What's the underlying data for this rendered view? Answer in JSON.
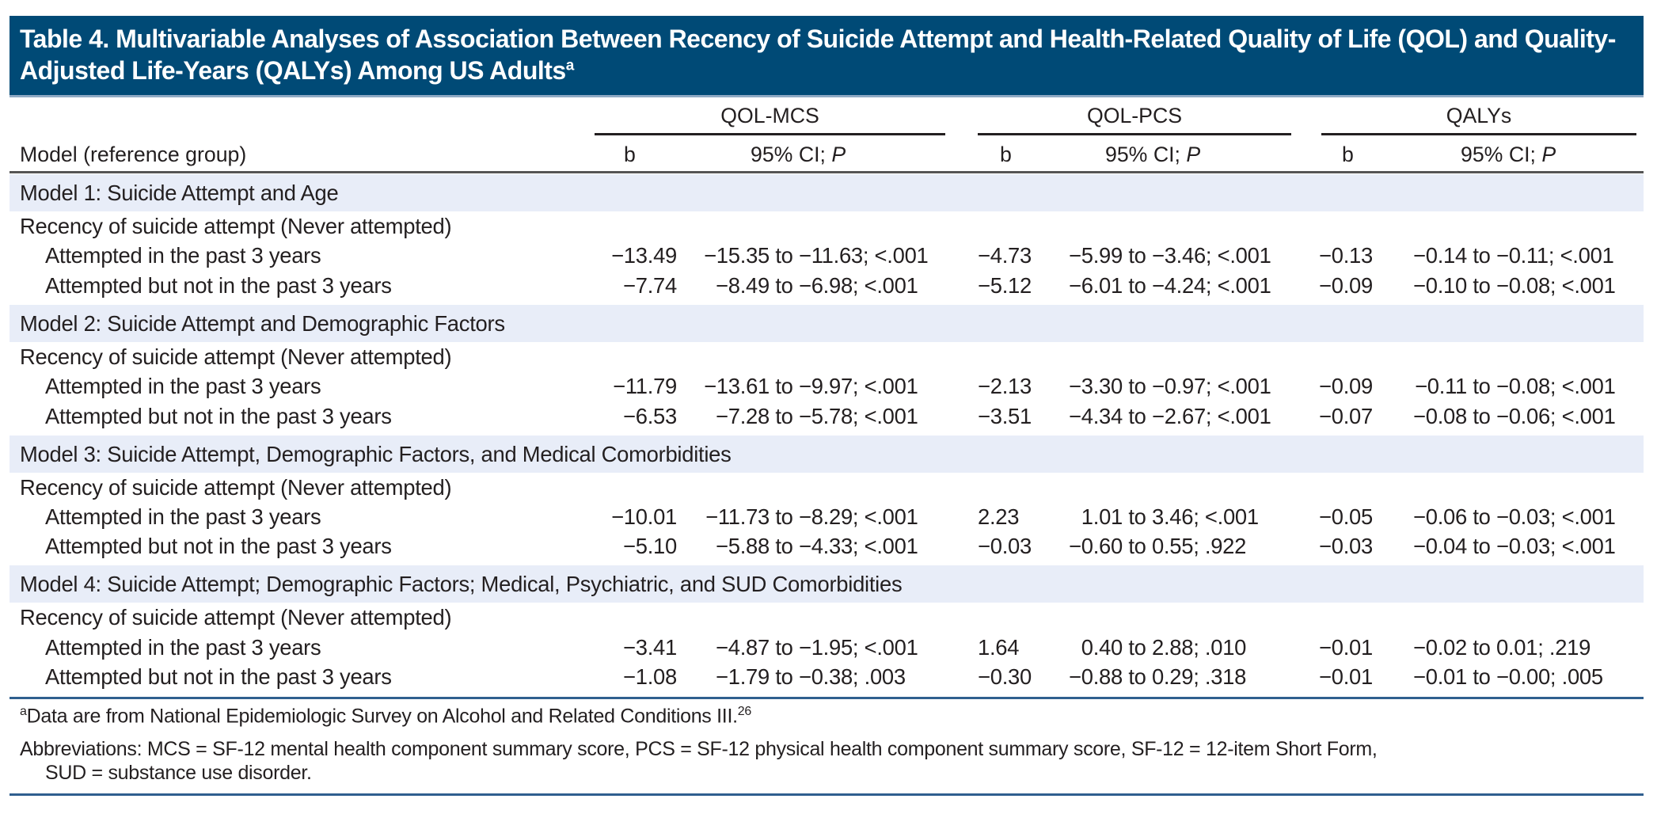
{
  "title": {
    "text": "Table 4. Multivariable Analyses of Association Between Recency of Suicide Attempt and Health-Related Quality of Life (QOL) and Quality-Adjusted Life-Years (QALYs) Among US Adults",
    "footnote_marker": "a"
  },
  "colors": {
    "title_bg": "#004a76",
    "band_bg": "#e8edf8",
    "rule_blue": "#2f5f8f"
  },
  "header": {
    "row_header": "Model (reference group)",
    "groups": [
      {
        "label": "QOL-MCS",
        "b": "b",
        "ci": "95% CI; ",
        "p": "P"
      },
      {
        "label": "QOL-PCS",
        "b": "b",
        "ci": "95% CI; ",
        "p": "P"
      },
      {
        "label": "QALYs",
        "b": "b",
        "ci": "95% CI; ",
        "p": "P"
      }
    ]
  },
  "models": [
    {
      "label": "Model 1: Suicide Attempt and Age",
      "reference": "Recency of suicide attempt (Never attempted)",
      "rows": [
        {
          "label": "Attempted in the past 3 years",
          "mcs_b": "−13.49",
          "mcs_ci": "−15.35 to −11.63; <.001",
          "pcs_b": "−4.73",
          "pcs_ci": "−5.99 to −3.46; <.001",
          "qaly_b": "−0.13",
          "qaly_ci": "−0.14 to −0.11; <.001"
        },
        {
          "label": "Attempted but not in the past 3 years",
          "mcs_b": "−7.74",
          "mcs_ci": "−8.49 to −6.98; <.001",
          "pcs_b": "−5.12",
          "pcs_ci": "−6.01 to −4.24; <.001",
          "qaly_b": "−0.09",
          "qaly_ci": "−0.10 to −0.08; <.001"
        }
      ]
    },
    {
      "label": "Model 2: Suicide Attempt and Demographic Factors",
      "reference": "Recency of suicide attempt (Never attempted)",
      "rows": [
        {
          "label": "Attempted in the past 3 years",
          "mcs_b": "−11.79",
          "mcs_ci": "−13.61 to −9.97; <.001",
          "pcs_b": "−2.13",
          "pcs_ci": "−3.30 to −0.97; <.001",
          "qaly_b": "−0.09",
          "qaly_ci": "−0.11 to −0.08; <.001"
        },
        {
          "label": "Attempted but not in the past 3 years",
          "mcs_b": "−6.53",
          "mcs_ci": "−7.28 to −5.78; <.001",
          "pcs_b": "−3.51",
          "pcs_ci": "−4.34 to −2.67; <.001",
          "qaly_b": "−0.07",
          "qaly_ci": "−0.08 to −0.06; <.001"
        }
      ]
    },
    {
      "label": "Model 3: Suicide Attempt, Demographic Factors, and Medical Comorbidities",
      "reference": "Recency of suicide attempt (Never attempted)",
      "rows": [
        {
          "label": "Attempted in the past 3 years",
          "mcs_b": "−10.01",
          "mcs_ci": "−11.73 to −8.29; <.001",
          "pcs_b": "2.23",
          "pcs_ci": "1.01 to 3.46; <.001",
          "qaly_b": "−0.05",
          "qaly_ci": "−0.06 to −0.03; <.001"
        },
        {
          "label": "Attempted but not in the past 3 years",
          "mcs_b": "−5.10",
          "mcs_ci": "−5.88 to −4.33; <.001",
          "pcs_b": "−0.03",
          "pcs_ci": "−0.60 to 0.55; .922",
          "qaly_b": "−0.03",
          "qaly_ci": "−0.04 to −0.03; <.001"
        }
      ]
    },
    {
      "label": "Model 4: Suicide Attempt; Demographic Factors; Medical, Psychiatric, and SUD Comorbidities",
      "reference": "Recency of suicide attempt (Never attempted)",
      "rows": [
        {
          "label": "Attempted in the past 3 years",
          "mcs_b": "−3.41",
          "mcs_ci": "−4.87 to −1.95; <.001",
          "pcs_b": "1.64",
          "pcs_ci": "0.40 to 2.88; .010",
          "qaly_b": "−0.01",
          "qaly_ci": "−0.02 to 0.01; .219"
        },
        {
          "label": "Attempted but not in the past 3 years",
          "mcs_b": "−1.08",
          "mcs_ci": "−1.79 to −0.38; .003",
          "pcs_b": "−0.30",
          "pcs_ci": "−0.88 to 0.29; .318",
          "qaly_b": "−0.01",
          "qaly_ci": "−0.01 to −0.00; .005"
        }
      ]
    }
  ],
  "footnotes": {
    "a_marker": "a",
    "a_text": "Data are from National Epidemiologic Survey on Alcohol and Related Conditions III.",
    "a_ref": "26",
    "abbreviations_line1": "Abbreviations: MCS = SF-12 mental health component summary score, PCS = SF-12 physical health component summary score, SF-12 = 12-item Short Form,",
    "abbreviations_line2": "SUD = substance use disorder."
  }
}
